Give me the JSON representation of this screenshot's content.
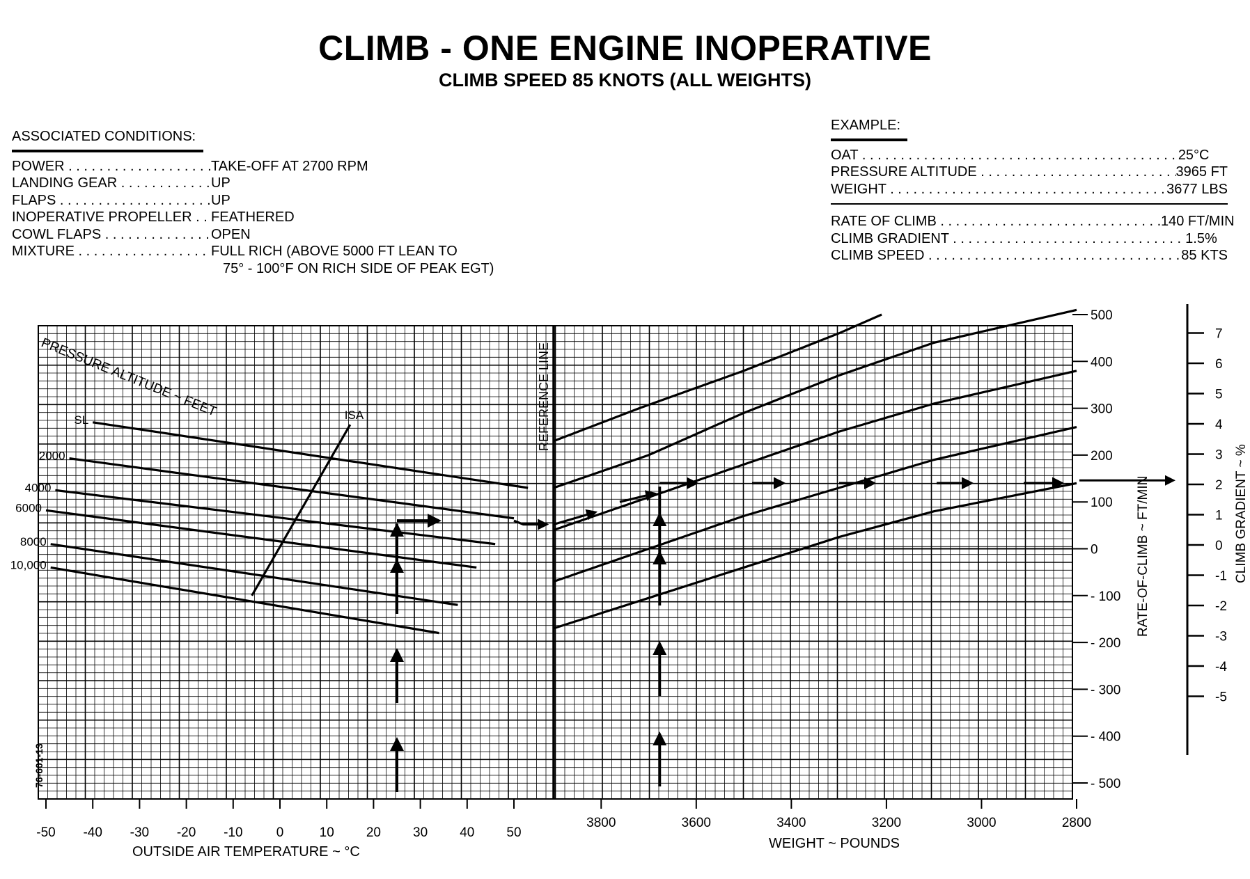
{
  "title": "CLIMB - ONE ENGINE INOPERATIVE",
  "subtitle": "CLIMB SPEED 85 KNOTS (ALL WEIGHTS)",
  "associated_conditions": {
    "heading": "ASSOCIATED CONDITIONS:",
    "rows": [
      {
        "label": "POWER",
        "value": "TAKE-OFF AT 2700 RPM"
      },
      {
        "label": "LANDING GEAR",
        "value": "UP"
      },
      {
        "label": "FLAPS",
        "value": "UP"
      },
      {
        "label": "INOPERATIVE PROPELLER",
        "value": "FEATHERED"
      },
      {
        "label": "COWL FLAPS",
        "value": "OPEN"
      },
      {
        "label": "MIXTURE",
        "value": "FULL RICH (ABOVE 5000 FT LEAN TO"
      }
    ],
    "mixture_continued": "75° - 100°F ON RICH SIDE OF PEAK EGT)"
  },
  "example": {
    "heading": "EXAMPLE:",
    "inputs": [
      {
        "label": "OAT",
        "value": "25°C"
      },
      {
        "label": "PRESSURE ALTITUDE",
        "value": "3965 FT"
      },
      {
        "label": "WEIGHT",
        "value": "3677 LBS"
      }
    ],
    "results": [
      {
        "label": "RATE OF CLIMB",
        "value": "140 FT/MIN"
      },
      {
        "label": "CLIMB GRADIENT",
        "value": "1.5%"
      },
      {
        "label": "CLIMB SPEED",
        "value": "85 KTS"
      }
    ]
  },
  "figure_id": "76-601-13",
  "chart_data": {
    "type": "line",
    "panels": [
      {
        "name": "temperature_altitude",
        "xlabel": "OUTSIDE AIR TEMPERATURE ~ °C",
        "x_ticks": [
          "-50",
          "-40",
          "-30",
          "-20",
          "-10",
          "0",
          "10",
          "20",
          "30",
          "40",
          "50"
        ],
        "xlim": [
          -50,
          60
        ],
        "curve_group_label": "PRESSURE ALTITUDE ~ FEET",
        "series": [
          {
            "name": "SL",
            "points": [
              [
                -40,
                270
              ],
              [
                53,
                130
              ]
            ]
          },
          {
            "name": "2000",
            "points": [
              [
                -45,
                193
              ],
              [
                50,
                65
              ]
            ]
          },
          {
            "name": "4000",
            "points": [
              [
                -48,
                125
              ],
              [
                46,
                10
              ]
            ]
          },
          {
            "name": "6000",
            "points": [
              [
                -50,
                82
              ],
              [
                42,
                -40
              ]
            ]
          },
          {
            "name": "8000",
            "points": [
              [
                -49,
                10
              ],
              [
                38,
                -120
              ]
            ]
          },
          {
            "name": "10,000",
            "points": [
              [
                -49,
                -40
              ],
              [
                34,
                -180
              ]
            ]
          },
          {
            "name": "ISA",
            "points": [
              [
                15,
                265
              ],
              [
                -6,
                -100
              ]
            ]
          }
        ],
        "reference_line_label": "REFERENCE LINE"
      },
      {
        "name": "weight",
        "xlabel": "WEIGHT ~ POUNDS",
        "x_ticks": [
          "3800",
          "3600",
          "3400",
          "3200",
          "3000",
          "2800"
        ],
        "xlim": [
          3900,
          2800
        ],
        "series": [
          {
            "name": "guide-1",
            "points": [
              [
                3900,
                230
              ],
              [
                3720,
                300
              ],
              [
                3500,
                380
              ],
              [
                3300,
                460
              ],
              [
                3210,
                500
              ]
            ]
          },
          {
            "name": "guide-2",
            "points": [
              [
                3900,
                130
              ],
              [
                3700,
                200
              ],
              [
                3500,
                290
              ],
              [
                3300,
                370
              ],
              [
                3100,
                440
              ],
              [
                2800,
                510
              ]
            ]
          },
          {
            "name": "guide-3",
            "points": [
              [
                3900,
                40
              ],
              [
                3700,
                110
              ],
              [
                3500,
                180
              ],
              [
                3300,
                250
              ],
              [
                3100,
                310
              ],
              [
                2800,
                380
              ]
            ]
          },
          {
            "name": "guide-4",
            "points": [
              [
                3900,
                -70
              ],
              [
                3700,
                0
              ],
              [
                3500,
                70
              ],
              [
                3300,
                130
              ],
              [
                3100,
                190
              ],
              [
                2800,
                260
              ]
            ]
          },
          {
            "name": "guide-5",
            "points": [
              [
                3900,
                -170
              ],
              [
                3700,
                -105
              ],
              [
                3500,
                -40
              ],
              [
                3300,
                25
              ],
              [
                3100,
                80
              ],
              [
                2800,
                140
              ]
            ]
          }
        ]
      }
    ],
    "y_axis": {
      "label": "RATE-OF-CLIMB ~ FT/MIN",
      "ticks": [
        "500",
        "400",
        "300",
        "200",
        "100",
        "0",
        "- 100",
        "- 200",
        "- 300",
        "- 400",
        "- 500"
      ],
      "ylim": [
        -500,
        500
      ]
    },
    "secondary_axis": {
      "label": "CLIMB GRADIENT ~ %",
      "ticks": [
        "7",
        "6",
        "5",
        "4",
        "3",
        "2",
        "1",
        "0",
        "-1",
        "-2",
        "-3",
        "-4",
        "-5"
      ]
    },
    "example_path": {
      "oat_c": 25,
      "pressure_altitude_ft": 3965,
      "weight_lbs": 3677,
      "rate_of_climb_ft_min": 140,
      "climb_gradient_pct": 1.5
    },
    "grid": true
  }
}
